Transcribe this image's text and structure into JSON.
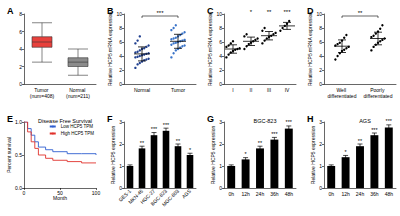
{
  "chart_data": [
    {
      "panel": "A",
      "type": "boxplot",
      "categories": [
        "Tumor (num=408)",
        "Normal (num=211)"
      ],
      "boxes": [
        [
          2.5,
          4.2,
          4.8,
          5.4,
          7.0
        ],
        [
          1.0,
          2.0,
          2.5,
          3.0,
          4.0
        ]
      ],
      "colors": [
        "#e8413c",
        "#8c8c8c"
      ],
      "ylim": [
        0,
        8
      ],
      "yticks": [
        0,
        2,
        4,
        6,
        8
      ]
    },
    {
      "panel": "B",
      "type": "scatter",
      "ylabel": "Relative HCP5 mRNA expression",
      "categories": [
        "Normal",
        "Tumor"
      ],
      "series_values": [
        [
          2.3,
          2.8,
          3.0,
          3.2,
          3.4,
          3.5,
          3.6,
          3.8,
          3.9,
          4.0,
          4.1,
          4.2,
          4.3,
          4.4,
          4.5,
          4.6,
          4.8,
          5.0,
          5.1,
          5.3,
          5.5,
          5.8,
          6.2,
          6.8
        ],
        [
          3.8,
          4.4,
          4.8,
          5.0,
          5.2,
          5.4,
          5.5,
          5.6,
          5.8,
          5.9,
          6.0,
          6.1,
          6.2,
          6.3,
          6.4,
          6.5,
          6.6,
          6.8,
          7.0,
          7.2,
          7.4,
          7.7,
          8.0,
          8.4
        ]
      ],
      "means": [
        4.3,
        6.1
      ],
      "errors": [
        1.0,
        1.0
      ],
      "colors": [
        "#1f3f8f",
        "#3a74c9"
      ],
      "annotation": "***",
      "ylim": [
        0,
        10
      ],
      "yticks": [
        0,
        2,
        4,
        6,
        8,
        10
      ]
    },
    {
      "panel": "C",
      "type": "scatter",
      "ylabel": "Relative HCP5 mRNA expression",
      "categories": [
        "I",
        "II",
        "III",
        "IV"
      ],
      "series_values": [
        [
          3.8,
          4.2,
          4.5,
          4.7,
          4.9,
          5.0,
          5.1,
          5.3,
          5.5,
          5.8,
          6.1
        ],
        [
          5.0,
          5.4,
          5.7,
          5.9,
          6.1,
          6.3,
          6.5,
          6.8,
          7.1
        ],
        [
          5.8,
          6.2,
          6.5,
          6.7,
          6.9,
          7.1,
          7.3,
          7.6,
          8.0
        ],
        [
          7.6,
          8.0,
          8.3,
          8.6,
          9.0
        ]
      ],
      "means": [
        5.0,
        6.1,
        6.9,
        8.3
      ],
      "errors": [
        0.6,
        0.6,
        0.6,
        0.5
      ],
      "color": "#000000",
      "annotations": [
        null,
        "*",
        "**",
        "***"
      ],
      "ylim": [
        0,
        10
      ],
      "yticks": [
        0,
        2,
        4,
        6,
        8,
        10
      ]
    },
    {
      "panel": "D",
      "type": "scatter",
      "ylabel": "Relative HCP5 mRNA expression",
      "categories": [
        "Well differentiated",
        "Poorly differentiated"
      ],
      "series_values": [
        [
          3.5,
          4.0,
          4.4,
          4.7,
          4.9,
          5.1,
          5.3,
          5.5,
          5.7,
          5.9,
          6.2,
          6.6,
          7.0
        ],
        [
          4.8,
          5.3,
          5.6,
          5.9,
          6.1,
          6.3,
          6.5,
          6.7,
          6.9,
          7.2,
          7.5,
          7.9,
          8.4
        ]
      ],
      "means": [
        5.4,
        6.5
      ],
      "errors": [
        0.9,
        0.9
      ],
      "color": "#000000",
      "annotation": "**",
      "ylim": [
        0,
        10
      ],
      "yticks": [
        0,
        2,
        4,
        6,
        8,
        10
      ]
    },
    {
      "panel": "E",
      "type": "line",
      "title": "Disease Free Survival",
      "xlabel": "Month",
      "ylabel": "Percent survival",
      "line_style": "step",
      "legend": "upper right",
      "series": [
        {
          "name": "Low HCP5 TPM",
          "color": "#2f5fd0",
          "x": [
            0,
            5,
            10,
            15,
            20,
            30,
            40,
            60,
            80,
            100
          ],
          "values": [
            1.0,
            0.9,
            0.8,
            0.7,
            0.62,
            0.58,
            0.55,
            0.52,
            0.52,
            0.5
          ]
        },
        {
          "name": "High HCP5 TPM",
          "color": "#e0312b",
          "x": [
            0,
            5,
            10,
            15,
            20,
            30,
            40,
            60,
            80,
            100
          ],
          "values": [
            1.0,
            0.85,
            0.7,
            0.6,
            0.5,
            0.45,
            0.42,
            0.4,
            0.38,
            0.38
          ]
        }
      ],
      "xlim": [
        0,
        100
      ],
      "xticks": [
        0,
        50,
        100
      ],
      "ylim": [
        0,
        1
      ],
      "yticks": [
        {
          "value": 0,
          "label": "0.0"
        },
        0.5,
        {
          "value": 1,
          "label": "1.0"
        }
      ]
    },
    {
      "panel": "F",
      "type": "bar",
      "ylabel": "Relative HCP5 expression",
      "categories": [
        "GES-1",
        "MKN-45",
        "HGC-27",
        "BGC-823",
        "MGC-803",
        "AGS"
      ],
      "values": [
        1.0,
        1.8,
        2.4,
        2.6,
        1.9,
        1.5
      ],
      "errors": [
        0.05,
        0.1,
        0.12,
        0.12,
        0.1,
        0.08
      ],
      "annotations": [
        null,
        "**",
        "***",
        "***",
        "**",
        "*"
      ],
      "color": "#000000",
      "ylim": [
        0,
        3
      ],
      "yticks": [
        0,
        1,
        2,
        3
      ]
    },
    {
      "panel": "G",
      "type": "bar",
      "title": "BGC-823",
      "ylabel": "Relative HCP5 expression",
      "categories": [
        "0h",
        "12h",
        "24h",
        "36h",
        "48h"
      ],
      "values": [
        1.0,
        1.3,
        1.8,
        2.2,
        2.7
      ],
      "errors": [
        0.05,
        0.08,
        0.1,
        0.1,
        0.12
      ],
      "annotations": [
        null,
        "*",
        "**",
        "***",
        "***"
      ],
      "color": "#000000",
      "ylim": [
        0,
        3
      ],
      "yticks": [
        0,
        1,
        2,
        3
      ]
    },
    {
      "panel": "H",
      "type": "bar",
      "title": "AGS",
      "ylabel": "Relative HCP5 expression",
      "categories": [
        "0h",
        "12h",
        "24h",
        "36h",
        "48h"
      ],
      "values": [
        1.0,
        1.4,
        1.9,
        2.4,
        2.75
      ],
      "errors": [
        0.05,
        0.08,
        0.1,
        0.1,
        0.12
      ],
      "annotations": [
        null,
        "*",
        "**",
        "***",
        "***"
      ],
      "color": "#000000",
      "ylim": [
        0,
        3
      ],
      "yticks": [
        0,
        1,
        2,
        3
      ]
    }
  ]
}
